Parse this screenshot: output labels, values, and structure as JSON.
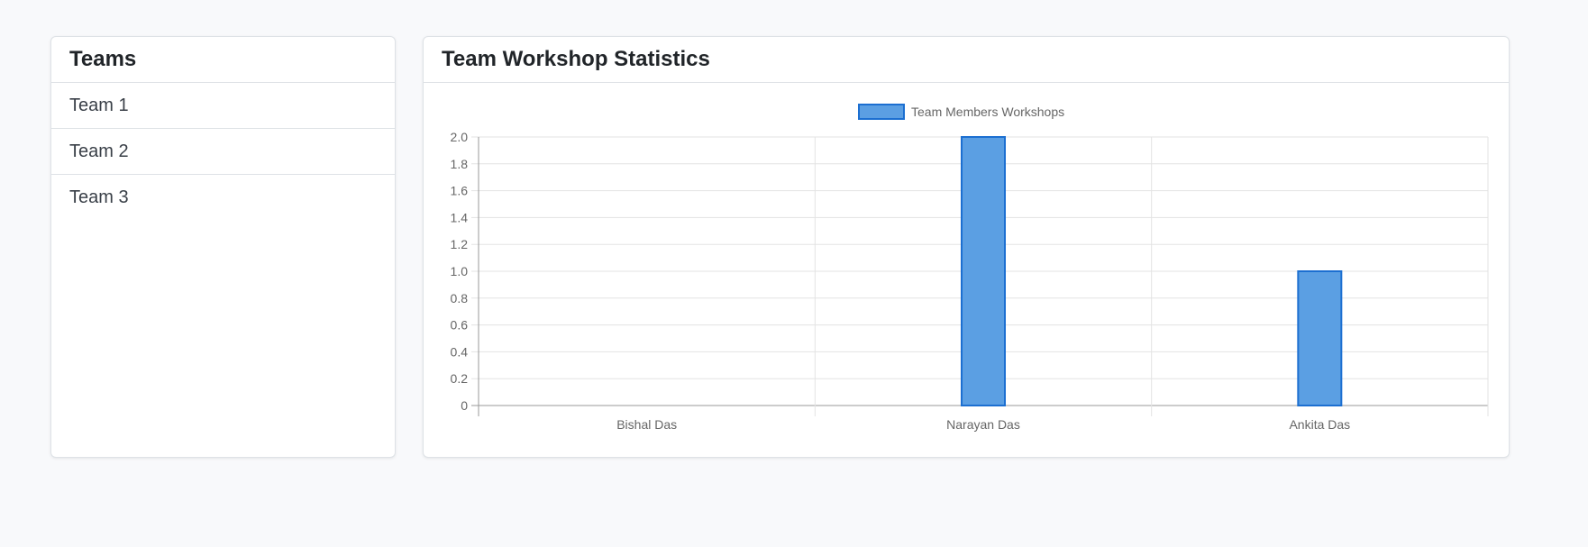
{
  "sidebar": {
    "title": "Teams",
    "items": [
      {
        "label": "Team 1"
      },
      {
        "label": "Team 2"
      },
      {
        "label": "Team 3"
      }
    ]
  },
  "stats": {
    "title": "Team Workshop Statistics"
  },
  "colors": {
    "bar_fill": "#5b9fe3",
    "bar_stroke": "#1c6fd1",
    "grid": "#e3e3e3",
    "axis": "#9a9a9a",
    "tick_text": "#666666"
  },
  "chart_data": {
    "type": "bar",
    "categories": [
      "Bishal Das",
      "Narayan Das",
      "Ankita Das"
    ],
    "series": [
      {
        "name": "Team Members Workshops",
        "values": [
          0,
          2,
          1
        ]
      }
    ],
    "y_ticks": [
      "0",
      "0.2",
      "0.4",
      "0.6",
      "0.8",
      "1.0",
      "1.2",
      "1.4",
      "1.6",
      "1.8",
      "2.0"
    ],
    "ylim": [
      0,
      2
    ],
    "grid": true,
    "legend_position": "top-center"
  }
}
